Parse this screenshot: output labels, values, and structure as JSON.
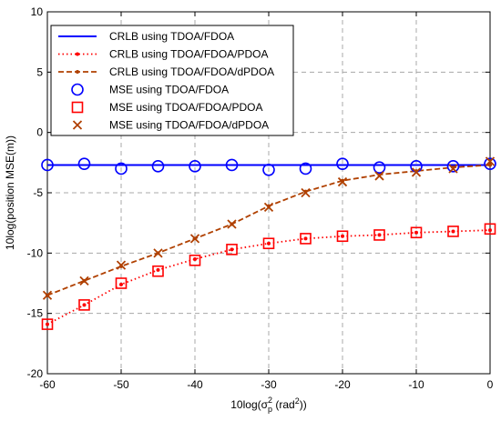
{
  "chart_data": {
    "type": "line",
    "title": "",
    "xlabel": "10log(σp² (rad²))",
    "ylabel": "10log(position MSE(m))",
    "xlim": [
      -60,
      0
    ],
    "ylim": [
      -20,
      10
    ],
    "xticks": [
      -60,
      -50,
      -40,
      -30,
      -20,
      -10,
      0
    ],
    "yticks": [
      -20,
      -15,
      -10,
      -5,
      0,
      5,
      10
    ],
    "grid": true,
    "legend_position": "top-left",
    "x": [
      -60,
      -55,
      -50,
      -45,
      -40,
      -35,
      -30,
      -25,
      -20,
      -15,
      -10,
      -5,
      0
    ],
    "series": [
      {
        "name": "CRLB using TDOA/FDOA",
        "style": "solid",
        "color": "#0000ff",
        "marker": "none",
        "values": [
          -2.7,
          -2.7,
          -2.7,
          -2.7,
          -2.7,
          -2.7,
          -2.7,
          -2.7,
          -2.7,
          -2.7,
          -2.7,
          -2.7,
          -2.7
        ]
      },
      {
        "name": "CRLB using TDOA/FDOA/PDOA",
        "style": "dotted",
        "color": "#ff0000",
        "marker": "dot",
        "values": [
          -15.9,
          -14.3,
          -12.6,
          -11.4,
          -10.5,
          -9.7,
          -9.2,
          -8.8,
          -8.6,
          -8.5,
          -8.3,
          -8.2,
          -8.1
        ]
      },
      {
        "name": "CRLB using TDOA/FDOA/dPDOA",
        "style": "dashed",
        "color": "#b04000",
        "marker": "dot",
        "values": [
          -13.5,
          -12.3,
          -11.1,
          -10.0,
          -8.8,
          -7.6,
          -6.1,
          -4.9,
          -4.0,
          -3.5,
          -3.2,
          -2.9,
          -2.7
        ]
      },
      {
        "name": "MSE using TDOA/FDOA",
        "style": "none",
        "color": "#0000ff",
        "marker": "circle",
        "values": [
          -2.7,
          -2.6,
          -3.0,
          -2.8,
          -2.8,
          -2.7,
          -3.1,
          -3.0,
          -2.6,
          -2.9,
          -2.8,
          -2.8,
          -2.6
        ]
      },
      {
        "name": "MSE using TDOA/FDOA/PDOA",
        "style": "none",
        "color": "#ff0000",
        "marker": "square",
        "values": [
          -15.9,
          -14.3,
          -12.5,
          -11.5,
          -10.6,
          -9.7,
          -9.2,
          -8.8,
          -8.6,
          -8.5,
          -8.3,
          -8.2,
          -8.0
        ]
      },
      {
        "name": "MSE using TDOA/FDOA/dPDOA",
        "style": "none",
        "color": "#b04000",
        "marker": "x",
        "values": [
          -13.5,
          -12.3,
          -11.0,
          -10.0,
          -8.8,
          -7.6,
          -6.2,
          -5.0,
          -4.1,
          -3.6,
          -3.3,
          -3.0,
          -2.4
        ]
      }
    ]
  }
}
